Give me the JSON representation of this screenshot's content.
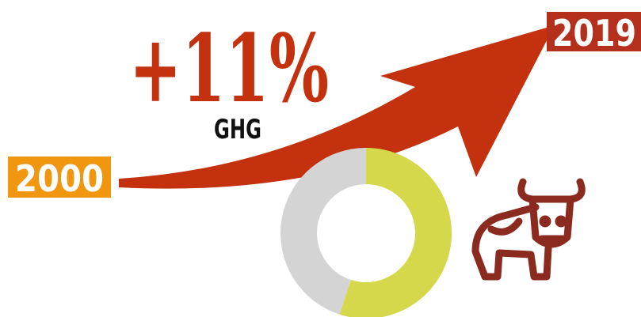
{
  "headline": "+11%",
  "label": "GHG",
  "start_year": "2000",
  "end_year": "2019",
  "donut": {
    "values": [
      55,
      45
    ],
    "colors": [
      "#d4d84a",
      "#d4d4d4"
    ]
  }
}
